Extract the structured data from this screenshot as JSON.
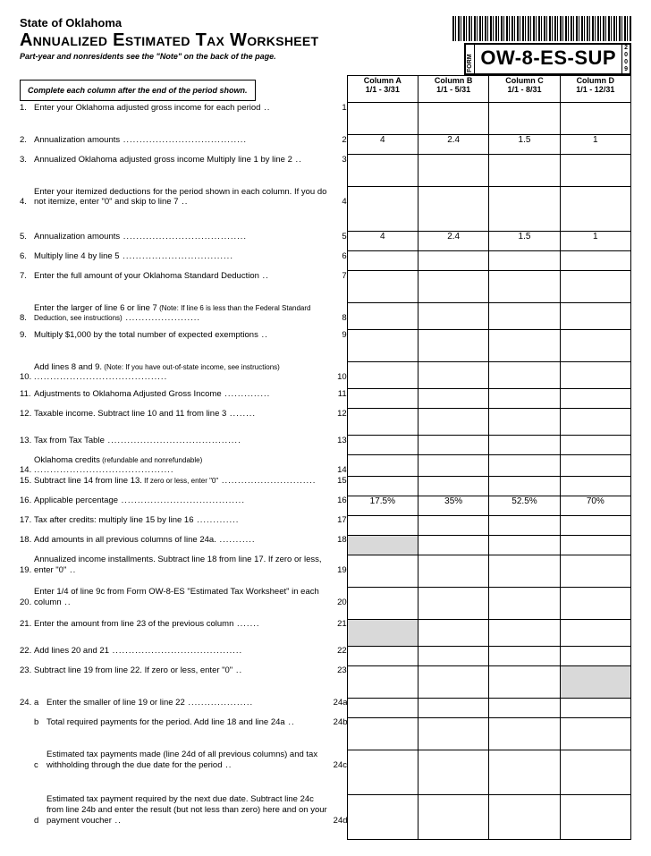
{
  "header": {
    "state": "State of Oklahoma",
    "title": "Annualized Estimated Tax Worksheet",
    "subtitle": "Part-year and nonresidents see the \"Note\" on the back of the page.",
    "form_label": "FORM",
    "form_code": "OW-8-ES-SUP",
    "year_digits": [
      "2",
      "0",
      "0",
      "9"
    ]
  },
  "complete_text": "Complete each column after the end of the period shown.",
  "columns": [
    {
      "label": "Column A",
      "range": "1/1 - 3/31"
    },
    {
      "label": "Column B",
      "range": "1/1 - 5/31"
    },
    {
      "label": "Column C",
      "range": "1/1 - 8/31"
    },
    {
      "label": "Column D",
      "range": "1/1 - 12/31"
    }
  ],
  "rows": [
    {
      "n": "1.",
      "text": "Enter your Oklahoma adjusted gross income for each period",
      "ln": "1",
      "vals": [
        "",
        "",
        "",
        ""
      ],
      "multi": true
    },
    {
      "n": "2.",
      "text": "Annualization amounts",
      "ln": "2",
      "vals": [
        "4",
        "2.4",
        "1.5",
        "1"
      ]
    },
    {
      "n": "3.",
      "text": "Annualized Oklahoma adjusted gross income Multiply line 1 by line 2",
      "ln": "3",
      "vals": [
        "",
        "",
        "",
        ""
      ],
      "multi": true
    },
    {
      "n": "4.",
      "text": "Enter your itemized deductions for the period shown in each column. If you do not itemize, enter \"0\" and skip to line 7",
      "ln": "4",
      "vals": [
        "",
        "",
        "",
        ""
      ],
      "multi": true
    },
    {
      "n": "5.",
      "text": "Annualization amounts",
      "ln": "5",
      "vals": [
        "4",
        "2.4",
        "1.5",
        "1"
      ]
    },
    {
      "n": "6.",
      "text": "Multiply line 4 by line 5",
      "ln": "6",
      "vals": [
        "",
        "",
        "",
        ""
      ]
    },
    {
      "n": "7.",
      "text": "Enter the full amount of your Oklahoma Standard Deduction",
      "ln": "7",
      "vals": [
        "",
        "",
        "",
        ""
      ],
      "multi": true
    },
    {
      "n": "8.",
      "text": "Enter the larger of line 6 or line 7",
      "small": " (Note: If line 6 is less than the Federal Standard Deduction, see instructions)",
      "ln": "8",
      "vals": [
        "",
        "",
        "",
        ""
      ],
      "multi": true
    },
    {
      "n": "9.",
      "text": "Multiply $1,000 by the total number of expected exemptions",
      "ln": "9",
      "vals": [
        "",
        "",
        "",
        ""
      ],
      "multi": true
    },
    {
      "n": "10.",
      "text": "Add lines 8 and 9.",
      "small": " (Note: If you have out-of-state income, see instructions)",
      "ln": "10",
      "vals": [
        "",
        "",
        "",
        ""
      ],
      "multi": true
    },
    {
      "n": "11.",
      "text": "Adjustments to Oklahoma Adjusted Gross Income",
      "ln": "11",
      "vals": [
        "",
        "",
        "",
        ""
      ]
    },
    {
      "n": "12.",
      "text": "Taxable income. Subtract line 10 and 11 from line 3",
      "ln": "12",
      "vals": [
        "",
        "",
        "",
        ""
      ],
      "multi": true
    },
    {
      "n": "13.",
      "text": "Tax from Tax Table",
      "ln": "13",
      "vals": [
        "",
        "",
        "",
        ""
      ]
    },
    {
      "n": "14.",
      "text": "Oklahoma credits",
      "small": " (refundable and nonrefundable)",
      "ln": "14",
      "vals": [
        "",
        "",
        "",
        ""
      ]
    },
    {
      "n": "15.",
      "text": "Subtract line 14 from line 13.",
      "small": " If zero or less, enter \"0\"",
      "ln": "15",
      "vals": [
        "",
        "",
        "",
        ""
      ]
    },
    {
      "n": "16.",
      "text": "Applicable percentage",
      "ln": "16",
      "vals": [
        "17.5%",
        "35%",
        "52.5%",
        "70%"
      ]
    },
    {
      "n": "17.",
      "text": "Tax after credits: multiply line 15 by line 16",
      "ln": "17",
      "vals": [
        "",
        "",
        "",
        ""
      ]
    },
    {
      "n": "18.",
      "text": "Add amounts in all previous columns of line 24a.",
      "ln": "18",
      "vals": [
        "",
        "",
        "",
        ""
      ],
      "shaded": [
        true,
        false,
        false,
        false
      ]
    },
    {
      "n": "19.",
      "text": "Annualized income installments. Subtract line 18 from line 17. If zero or less, enter \"0\"",
      "ln": "19",
      "vals": [
        "",
        "",
        "",
        ""
      ],
      "multi": true
    },
    {
      "n": "20.",
      "text": "Enter 1/4 of line 9c from Form OW-8-ES \"Estimated Tax Worksheet\" in each column",
      "ln": "20",
      "vals": [
        "",
        "",
        "",
        ""
      ],
      "multi": true
    },
    {
      "n": "21.",
      "text": "Enter the amount from line 23 of the previous column",
      "ln": "21",
      "vals": [
        "",
        "",
        "",
        ""
      ],
      "shaded": [
        true,
        false,
        false,
        false
      ],
      "multi": true
    },
    {
      "n": "22.",
      "text": "Add lines 20 and 21",
      "ln": "22",
      "vals": [
        "",
        "",
        "",
        ""
      ]
    },
    {
      "n": "23.",
      "text": "Subtract line 19 from line 22. If zero or less, enter \"0\"",
      "ln": "23",
      "vals": [
        "",
        "",
        "",
        ""
      ],
      "shaded": [
        false,
        false,
        false,
        true
      ],
      "multi": true
    },
    {
      "n": "24.",
      "sub": "a",
      "text": "Enter the smaller of line 19 or line 22",
      "ln": "24a",
      "vals": [
        "",
        "",
        "",
        ""
      ]
    },
    {
      "n": "",
      "sub": "b",
      "text": "Total required payments for the period. Add line 18 and line 24a",
      "ln": "24b",
      "vals": [
        "",
        "",
        "",
        ""
      ],
      "multi": true
    },
    {
      "n": "",
      "sub": "c",
      "text": "Estimated tax payments made (line 24d of all previous columns) and tax withholding through the due date for the period",
      "ln": "24c",
      "vals": [
        "",
        "",
        "",
        ""
      ],
      "multi": true
    },
    {
      "n": "",
      "sub": "d",
      "text": "Estimated tax payment required by the next due date. Subtract line 24c from line 24b and enter the result (but not less than zero) here and on your payment voucher",
      "ln": "24d",
      "vals": [
        "",
        "",
        "",
        ""
      ],
      "multi": true
    }
  ],
  "colors": {
    "shaded": "#d9d9d9",
    "border": "#000000",
    "bg": "#ffffff"
  }
}
